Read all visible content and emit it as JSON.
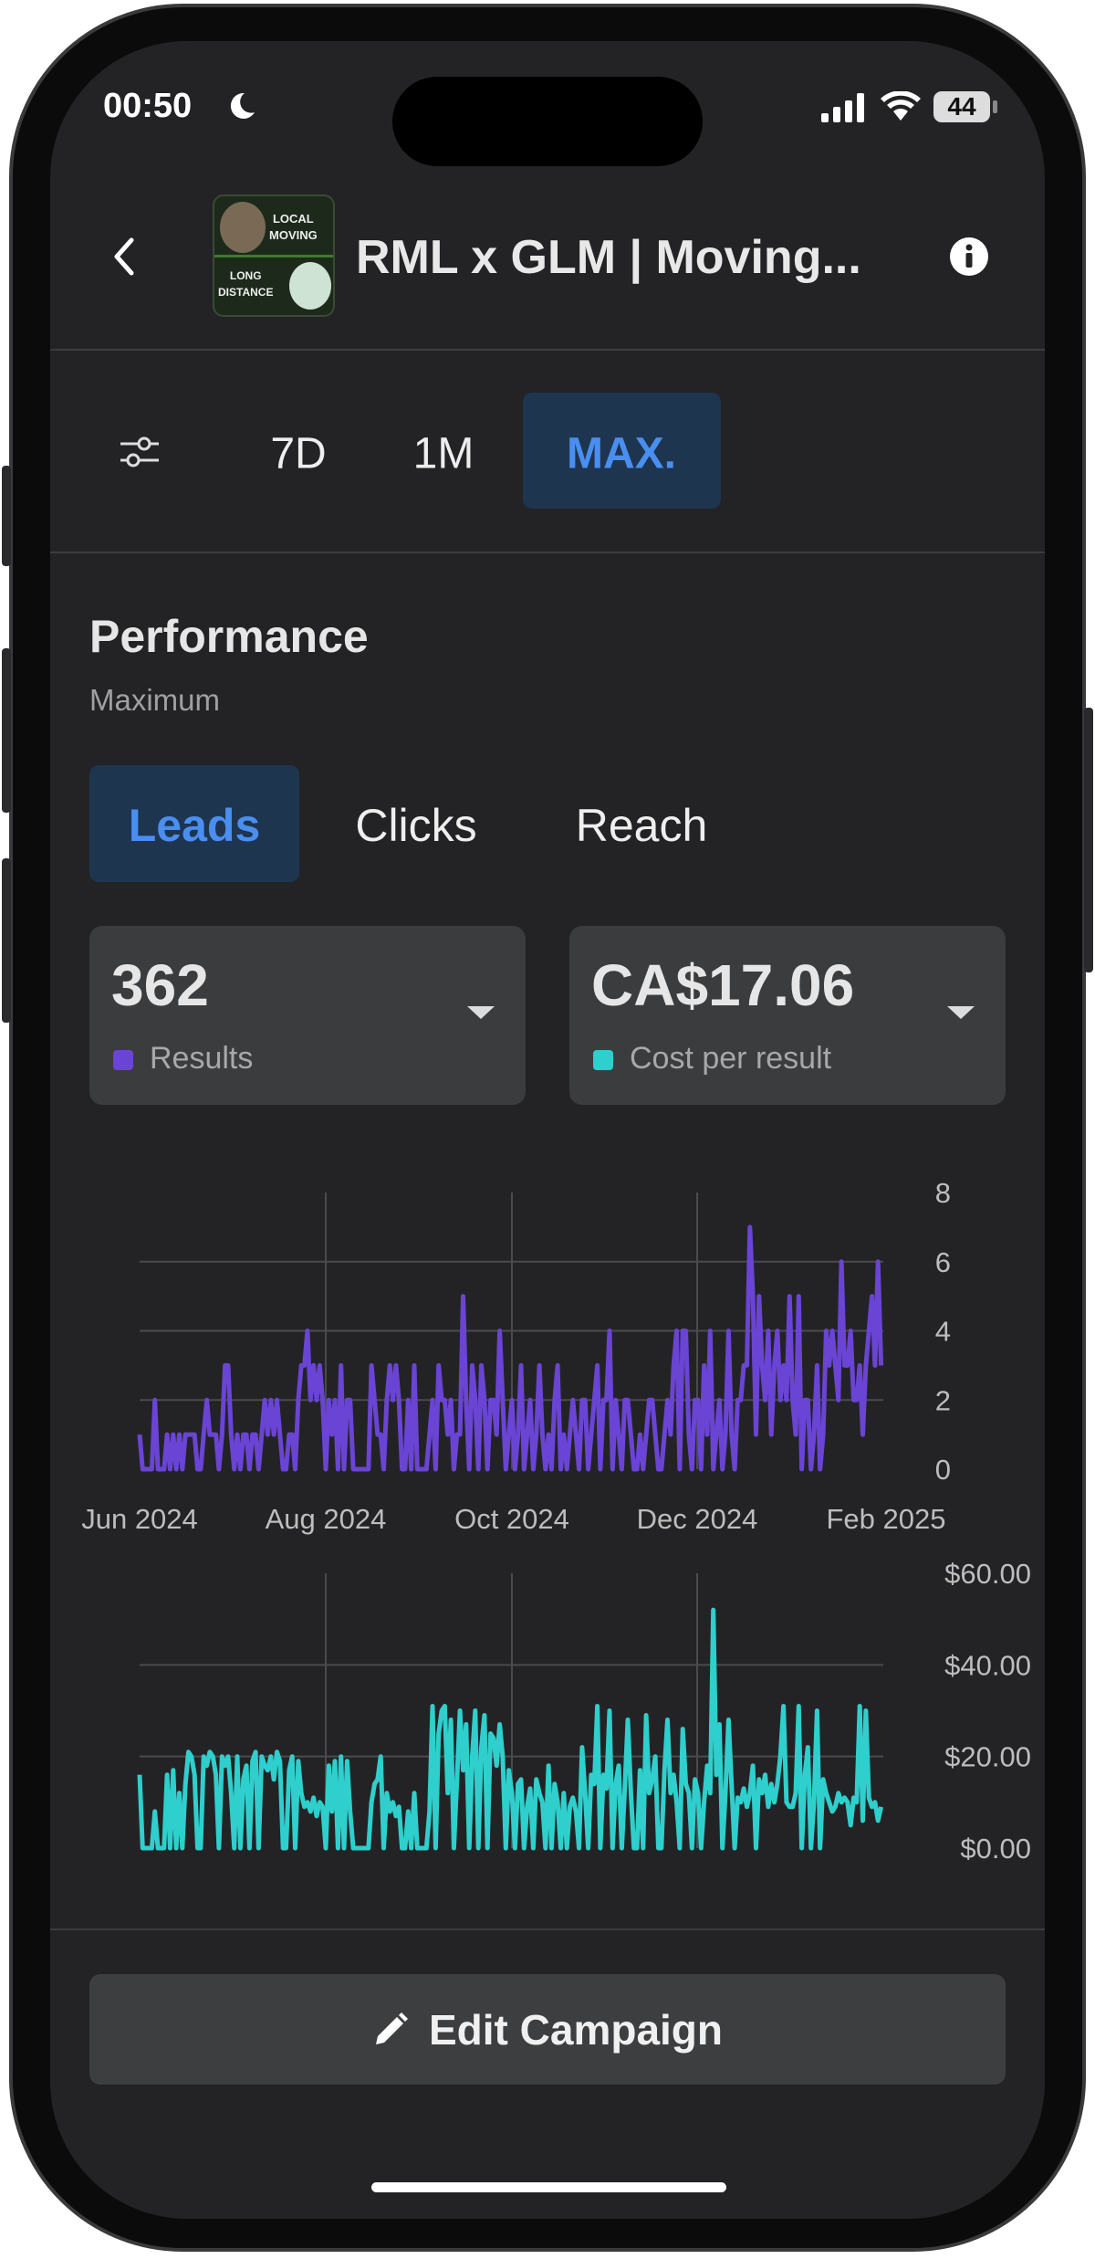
{
  "status_bar": {
    "time": "00:50",
    "battery": "44",
    "icons": [
      "moon-icon",
      "signal-icon",
      "wifi-icon",
      "battery-icon"
    ]
  },
  "header": {
    "title": "RML x GLM | Moving...",
    "thumbnail_text": [
      "LOCAL",
      "MOVING",
      "LONG",
      "DISTANCE"
    ],
    "back_icon": "chevron-left-icon",
    "info_icon": "info-icon"
  },
  "periods": {
    "filter_icon": "sliders-icon",
    "items": [
      "7D",
      "1M",
      "MAX."
    ],
    "selected": "MAX."
  },
  "performance": {
    "title": "Performance",
    "subtitle": "Maximum",
    "tabs": [
      "Leads",
      "Clicks",
      "Reach"
    ],
    "selected_tab": "Leads"
  },
  "metrics": [
    {
      "value": "362",
      "label": "Results",
      "color": "#6a44d4"
    },
    {
      "value": "CA$17.06",
      "label": "Cost per result",
      "color": "#2ecfcc"
    }
  ],
  "colors": {
    "accent": "#4a8ef0",
    "accent_bg": "#1e3550",
    "results": "#6a44d4",
    "cost": "#2ecfcc"
  },
  "chart_data": [
    {
      "type": "line",
      "x_start": "2024-06-01",
      "x_step": "1 day",
      "x_ticks": [
        "Jun 2024",
        "Aug 2024",
        "Oct 2024",
        "Dec 2024",
        "Feb 2025"
      ],
      "y_ticks": [
        "0",
        "2",
        "4",
        "6",
        "8"
      ],
      "ylim": [
        0,
        8
      ],
      "grid": true,
      "series": [
        {
          "values": [
            1,
            0,
            0,
            0,
            0,
            2,
            0,
            0,
            0,
            1,
            0,
            1,
            0,
            1,
            0,
            1,
            1,
            1,
            1,
            0,
            0,
            1,
            2,
            1,
            1,
            1,
            0,
            1,
            3,
            3,
            1,
            0,
            1,
            0,
            1,
            1,
            0,
            1,
            1,
            0,
            1,
            2,
            1,
            2,
            1,
            2,
            1,
            0,
            0,
            1,
            1,
            0,
            2,
            3,
            3,
            4,
            2,
            3,
            2,
            3,
            2,
            0,
            2,
            1,
            2,
            0,
            3,
            0,
            2,
            2,
            0,
            0,
            0,
            0,
            0,
            0,
            3,
            2,
            1,
            1,
            0,
            2,
            3,
            2,
            3,
            2,
            0,
            0,
            2,
            0,
            3,
            0,
            0,
            0,
            0,
            1,
            2,
            0,
            3,
            2,
            2,
            1,
            2,
            0,
            1,
            1,
            5,
            2,
            0,
            3,
            2,
            0,
            3,
            2,
            0,
            2,
            2,
            1,
            4,
            2,
            0,
            1,
            2,
            0,
            1,
            3,
            0,
            1,
            2,
            0,
            1,
            3,
            1,
            0,
            1,
            0,
            2,
            3,
            0,
            1,
            0,
            1,
            2,
            1,
            0,
            2,
            2,
            0,
            1,
            2,
            3,
            0,
            2,
            2,
            4,
            0,
            2,
            1,
            0,
            2,
            2,
            1,
            0,
            0,
            1,
            0,
            1,
            2,
            2,
            1,
            0,
            0,
            1,
            2,
            1,
            3,
            4,
            0,
            4,
            4,
            1,
            0,
            2,
            2,
            0,
            3,
            1,
            4,
            0,
            1,
            2,
            0,
            1,
            4,
            1,
            0,
            2,
            2,
            3,
            3,
            7,
            5,
            1,
            5,
            3,
            2,
            4,
            1,
            3,
            4,
            2,
            3,
            2,
            5,
            2,
            1,
            5,
            0,
            2,
            2,
            0,
            1,
            3,
            0,
            1,
            4,
            3,
            4,
            3,
            2,
            6,
            3,
            3,
            4,
            2,
            2,
            3,
            1,
            3,
            4,
            5,
            3,
            6,
            3
          ]
        }
      ]
    },
    {
      "type": "line",
      "x_start": "2024-06-01",
      "x_step": "1 day",
      "y_ticks": [
        "$0.00",
        "$20.00",
        "$40.00",
        "$60.00"
      ],
      "ylim": [
        0,
        60
      ],
      "grid": true,
      "series": [
        {
          "values": [
            16,
            0,
            0,
            0,
            0,
            8,
            0,
            0,
            0,
            16,
            0,
            17,
            0,
            12,
            0,
            14,
            21,
            20,
            16,
            0,
            0,
            20,
            18,
            21,
            20,
            16,
            0,
            20,
            18,
            20,
            12,
            0,
            20,
            0,
            15,
            18,
            0,
            19,
            21,
            0,
            20,
            18,
            17,
            20,
            15,
            21,
            19,
            0,
            0,
            17,
            20,
            0,
            19,
            12,
            9,
            10,
            8,
            11,
            7,
            10,
            9,
            0,
            18,
            8,
            19,
            0,
            20,
            0,
            19,
            8,
            0,
            0,
            0,
            0,
            0,
            0,
            10,
            14,
            15,
            20,
            0,
            12,
            8,
            10,
            7,
            9,
            0,
            0,
            8,
            0,
            12,
            0,
            0,
            0,
            0,
            8,
            31,
            0,
            25,
            30,
            31,
            12,
            28,
            0,
            15,
            30,
            17,
            27,
            0,
            20,
            30,
            0,
            22,
            29,
            0,
            25,
            24,
            18,
            27,
            20,
            0,
            17,
            12,
            0,
            14,
            15,
            0,
            9,
            13,
            0,
            15,
            12,
            10,
            0,
            18,
            0,
            14,
            10,
            0,
            12,
            0,
            9,
            11,
            8,
            0,
            22,
            12,
            0,
            16,
            14,
            31,
            0,
            16,
            13,
            30,
            0,
            14,
            18,
            0,
            13,
            28,
            12,
            0,
            0,
            17,
            0,
            29,
            12,
            15,
            20,
            0,
            0,
            17,
            28,
            12,
            16,
            10,
            0,
            26,
            14,
            12,
            0,
            15,
            12,
            0,
            10,
            18,
            12,
            52,
            16,
            27,
            0,
            12,
            28,
            14,
            0,
            11,
            10,
            13,
            9,
            12,
            18,
            0,
            15,
            12,
            16,
            9,
            14,
            10,
            14,
            20,
            31,
            10,
            9,
            9,
            12,
            31,
            0,
            16,
            22,
            0,
            10,
            30,
            0,
            15,
            12,
            10,
            8,
            9,
            12,
            10,
            11,
            10,
            5,
            11,
            10,
            31,
            6,
            30,
            11,
            9,
            10,
            6,
            9
          ]
        }
      ]
    }
  ],
  "footer": {
    "edit_label": "Edit Campaign",
    "edit_icon": "pencil-icon"
  }
}
